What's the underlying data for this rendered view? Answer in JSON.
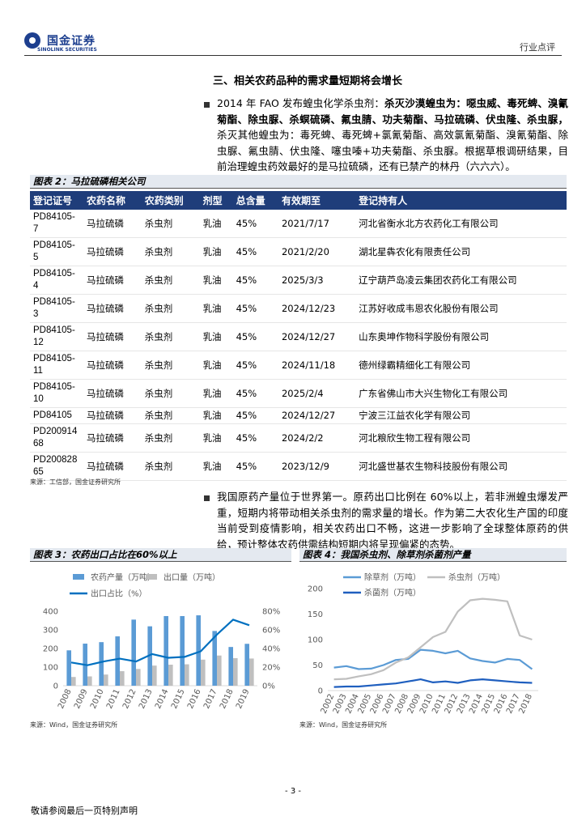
{
  "header": {
    "brand": "国金证券",
    "brand_en": "SINOLINK SECURITIES",
    "doc_type": "行业点评"
  },
  "section_title": "三、相关农药品种的需求量短期将会增长",
  "paragraphs": [
    {
      "runs": [
        {
          "text": "2014 年 FAO 发布蝗虫化学杀虫剂："
        },
        {
          "text": "杀灭沙漠蝗虫为：噁虫威、毒死蜱、溴氰菊酯、除虫脲、杀螟硫磷、氟虫腈、功夫菊酯、马拉硫磷、伏虫隆、杀虫脲，",
          "bold": true
        },
        {
          "text": "杀灭其他蝗虫为：毒死蜱、毒死蜱+氯氰菊酯、高效氯氰菊酯、溴氰菊酯、除虫脲、氟虫腈、伏虫隆、噻虫嗪+功夫菊酯、杀虫脲。根据草根调研结果，目前治理蝗虫药效最好的是马拉硫磷，还有已禁产的林丹（六六六）。"
        }
      ]
    },
    {
      "runs": [
        {
          "text": "我国原药产量位于世界第一。原药出口比例在 60%以上，若非洲蝗虫爆发严重，短期内将带动相关杀虫剂的需求量的增长。作为第二大农化生产国的印度当前受到疫情影响，相关农药出口不畅，这进一步影响了全球整体原药的供给，预计整体农药供需结构短期内将呈现偏紧的态势。"
        }
      ]
    }
  ],
  "table": {
    "title": "图表 2：马拉硫磷相关公司",
    "columns": [
      "登记证号",
      "农药名称",
      "农药类别",
      "剂型",
      "总含量",
      "有效期至",
      "登记持有人"
    ],
    "rows": [
      [
        "PD84105-7",
        "马拉硫磷",
        "杀虫剂",
        "乳油",
        "45%",
        "2021/7/17",
        "河北省衡水北方农药化工有限公司"
      ],
      [
        "PD84105-5",
        "马拉硫磷",
        "杀虫剂",
        "乳油",
        "45%",
        "2021/2/20",
        "湖北星犇农化有限责任公司"
      ],
      [
        "PD84105-4",
        "马拉硫磷",
        "杀虫剂",
        "乳油",
        "45%",
        "2025/3/3",
        "辽宁葫芦岛凌云集团农药化工有限公司"
      ],
      [
        "PD84105-3",
        "马拉硫磷",
        "杀虫剂",
        "乳油",
        "45%",
        "2024/12/23",
        "江苏好收成韦恩农化股份有限公司"
      ],
      [
        "PD84105-12",
        "马拉硫磷",
        "杀虫剂",
        "乳油",
        "45%",
        "2024/12/27",
        "山东奥坤作物科学股份有限公司"
      ],
      [
        "PD84105-11",
        "马拉硫磷",
        "杀虫剂",
        "乳油",
        "45%",
        "2024/11/18",
        "德州绿霸精细化工有限公司"
      ],
      [
        "PD84105-10",
        "马拉硫磷",
        "杀虫剂",
        "乳油",
        "45%",
        "2025/2/4",
        "广东省佛山市大兴生物化工有限公司"
      ],
      [
        "PD84105",
        "马拉硫磷",
        "杀虫剂",
        "乳油",
        "45%",
        "2024/12/27",
        "宁波三江益农化学有限公司"
      ],
      [
        "PD20091468",
        "马拉硫磷",
        "杀虫剂",
        "乳油",
        "45%",
        "2024/2/2",
        "河北粮欣生物工程有限公司"
      ],
      [
        "PD20082865",
        "马拉硫磷",
        "杀虫剂",
        "乳油",
        "45%",
        "2023/12/9",
        "河北盛世基农生物科技股份有限公司"
      ]
    ],
    "source": "来源：工信部，国金证券研究所"
  },
  "chart_data": [
    {
      "type": "bar",
      "title": "图表 3：农药出口占比在60%以上",
      "categories": [
        "2008",
        "2009",
        "2010",
        "2011",
        "2012",
        "2013",
        "2014",
        "2015",
        "2016",
        "2017",
        "2018",
        "2019"
      ],
      "series": [
        {
          "name": "农药产量（万吨）",
          "type": "bar",
          "color": "#5b9bd5",
          "values": [
            190,
            226,
            234,
            265,
            355,
            319,
            374,
            374,
            378,
            294,
            208,
            225
          ]
        },
        {
          "name": "出口量（万吨）",
          "type": "bar",
          "color": "#bfbfbf",
          "values": [
            47,
            50,
            60,
            78,
            90,
            108,
            113,
            115,
            140,
            162,
            148,
            146
          ]
        },
        {
          "name": "出口占比（%）",
          "type": "line",
          "axis": "y2",
          "color": "#0070c0",
          "values": [
            25,
            22,
            26,
            29,
            26,
            34,
            30,
            31,
            37,
            55,
            71,
            65
          ]
        }
      ],
      "ylim": [
        0,
        400
      ],
      "yticks": [
        0,
        100,
        200,
        300,
        400
      ],
      "y2lim": [
        0,
        80
      ],
      "y2ticks": [
        {
          "value": 0,
          "label": "0%"
        },
        {
          "value": 20,
          "label": "20%"
        },
        {
          "value": 40,
          "label": "40%"
        },
        {
          "value": 60,
          "label": "60%"
        },
        {
          "value": 80,
          "label": "80%"
        }
      ],
      "source": "来源：Wind，国金证券研究所"
    },
    {
      "type": "line",
      "title": "图表 4：我国杀虫剂、除草剂杀菌剂产量",
      "categories": [
        "2002",
        "2003",
        "2004",
        "2005",
        "2006",
        "2007",
        "2008",
        "2009",
        "2010",
        "2011",
        "2012",
        "2013",
        "2014",
        "2015",
        "2016",
        "2017",
        "2018"
      ],
      "series": [
        {
          "name": "除草剂（万吨）",
          "type": "line",
          "color": "#5b9bd5",
          "values": [
            45,
            48,
            42,
            43,
            50,
            60,
            62,
            80,
            78,
            73,
            78,
            63,
            58,
            55,
            62,
            60,
            42
          ]
        },
        {
          "name": "杀虫剂（万吨）",
          "type": "line",
          "color": "#bfbfbf",
          "values": [
            22,
            23,
            28,
            32,
            40,
            55,
            65,
            85,
            105,
            115,
            155,
            177,
            180,
            178,
            175,
            108,
            100
          ]
        },
        {
          "name": "杀菌剂（万吨）",
          "type": "line",
          "color": "#1f5fbf",
          "values": [
            7,
            8,
            8,
            10,
            12,
            14,
            18,
            22,
            16,
            18,
            15,
            20,
            22,
            20,
            18,
            16,
            15
          ]
        }
      ],
      "ylim": [
        0,
        200
      ],
      "yticks": [
        0,
        50,
        100,
        150,
        200
      ],
      "source": "来源：Wind，国金证券研究所"
    }
  ],
  "footer": {
    "page": "- 3 -",
    "disclaimer": "敬请参阅最后一页特别声明"
  }
}
